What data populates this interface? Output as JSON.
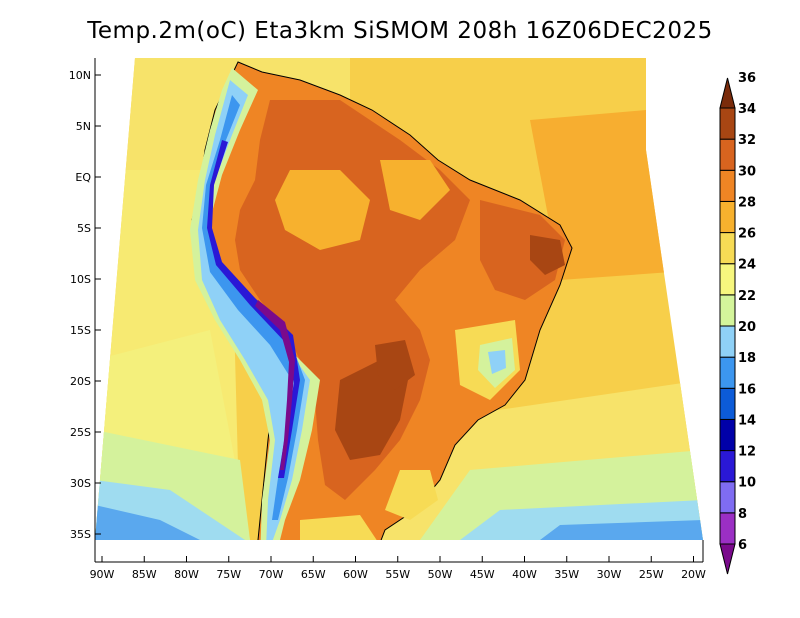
{
  "title": "Temp.2m(oC) Eta3km SiSMOM 208h 16Z06DEC2025",
  "map": {
    "variable": "2 m temperature",
    "units": "oC",
    "lon_range": [
      -91,
      -19
    ],
    "lat_range": [
      -38,
      12
    ],
    "lat_ticks": [
      {
        "value": 10,
        "label": "10N"
      },
      {
        "value": 5,
        "label": "5N"
      },
      {
        "value": 0,
        "label": "EQ"
      },
      {
        "value": -5,
        "label": "5S"
      },
      {
        "value": -10,
        "label": "10S"
      },
      {
        "value": -15,
        "label": "15S"
      },
      {
        "value": -20,
        "label": "20S"
      },
      {
        "value": -25,
        "label": "25S"
      },
      {
        "value": -30,
        "label": "30S"
      },
      {
        "value": -35,
        "label": "35S"
      }
    ],
    "lon_ticks": [
      {
        "value": -90,
        "label": "90W"
      },
      {
        "value": -85,
        "label": "85W"
      },
      {
        "value": -80,
        "label": "80W"
      },
      {
        "value": -75,
        "label": "75W"
      },
      {
        "value": -70,
        "label": "70W"
      },
      {
        "value": -65,
        "label": "65W"
      },
      {
        "value": -60,
        "label": "60W"
      },
      {
        "value": -55,
        "label": "55W"
      },
      {
        "value": -50,
        "label": "50W"
      },
      {
        "value": -45,
        "label": "45W"
      },
      {
        "value": -40,
        "label": "40W"
      },
      {
        "value": -35,
        "label": "35W"
      },
      {
        "value": -30,
        "label": "30W"
      },
      {
        "value": -25,
        "label": "25W"
      },
      {
        "value": -20,
        "label": "20W"
      }
    ]
  },
  "colorbar": {
    "levels": [
      6,
      8,
      10,
      12,
      14,
      16,
      18,
      20,
      22,
      24,
      26,
      28,
      30,
      32,
      34,
      36
    ],
    "colors": [
      "#7a0a8c",
      "#9b2fc4",
      "#7f6cf2",
      "#2a18d6",
      "#0000a8",
      "#0c5bd8",
      "#3c96ef",
      "#8fd1f7",
      "#d4f59b",
      "#f7f77e",
      "#f7db55",
      "#f7b12e",
      "#ef8524",
      "#d8641f",
      "#a84613",
      "#7a2b0b"
    ]
  }
}
